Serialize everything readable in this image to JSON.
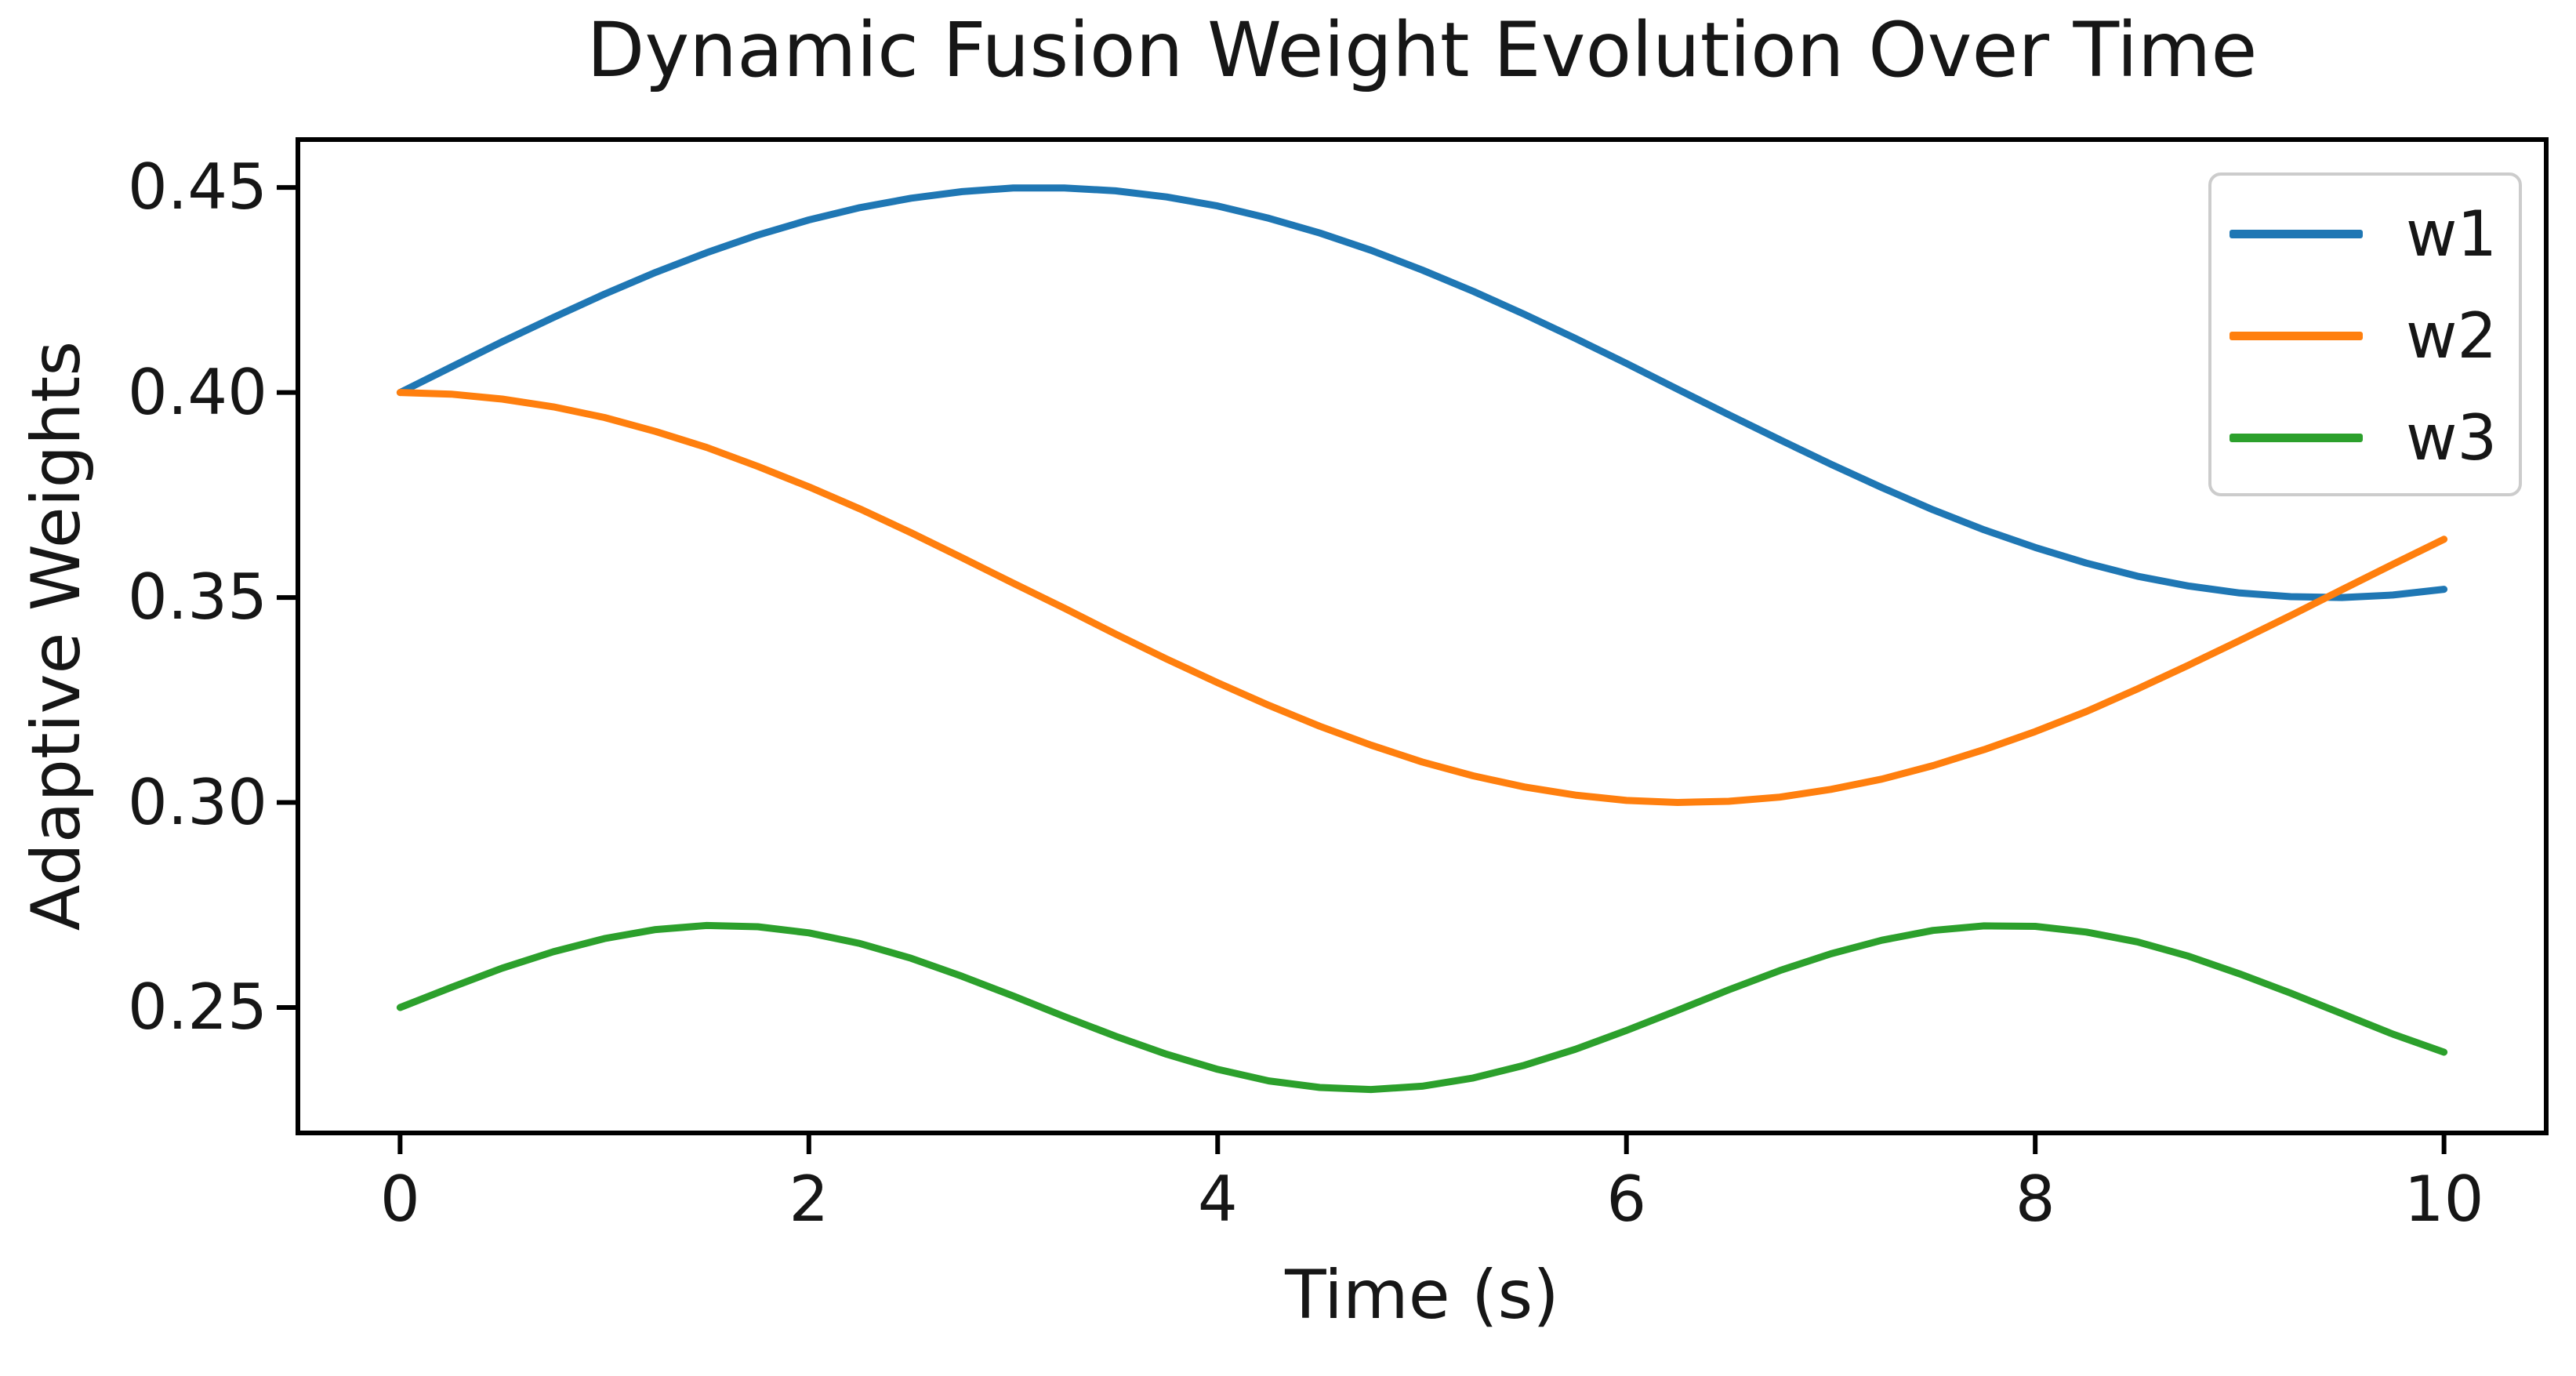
{
  "figure": {
    "background_color": "#ffffff",
    "text_color": "#161616",
    "spine_color": "#000000",
    "legend_border_color": "#cccccc"
  },
  "chart_data": {
    "type": "line",
    "title": "Dynamic Fusion Weight Evolution Over Time",
    "xlabel": "Time (s)",
    "ylabel": "Adaptive Weights",
    "grid": false,
    "legend_position": "upper right",
    "xlim": [
      -0.5,
      10.5
    ],
    "ylim": [
      0.2194,
      0.4617
    ],
    "xticks": {
      "values": [
        0,
        2,
        4,
        6,
        8,
        10
      ],
      "labels": [
        "0",
        "2",
        "4",
        "6",
        "8",
        "10"
      ]
    },
    "yticks": {
      "values": [
        0.25,
        0.3,
        0.35,
        0.4,
        0.45
      ],
      "labels": [
        "0.25",
        "0.30",
        "0.35",
        "0.40",
        "0.45"
      ]
    },
    "x": [
      0,
      0.25,
      0.5,
      0.75,
      1,
      1.25,
      1.5,
      1.75,
      2,
      2.25,
      2.5,
      2.75,
      3,
      3.25,
      3.5,
      3.75,
      4,
      4.25,
      4.5,
      4.75,
      5,
      5.25,
      5.5,
      5.75,
      6,
      6.25,
      6.5,
      6.75,
      7,
      7.25,
      7.5,
      7.75,
      8,
      8.25,
      8.5,
      8.75,
      9,
      9.25,
      9.5,
      9.75,
      10
    ],
    "series": [
      {
        "name": "w1",
        "color": "#1f77b4",
        "values": [
          0.4,
          0.4062,
          0.4124,
          0.4183,
          0.424,
          0.4293,
          0.4341,
          0.4384,
          0.4421,
          0.4451,
          0.4474,
          0.449,
          0.4499,
          0.4499,
          0.4492,
          0.4477,
          0.4455,
          0.4425,
          0.4389,
          0.4347,
          0.4299,
          0.4247,
          0.4191,
          0.4132,
          0.4071,
          0.4008,
          0.3946,
          0.3885,
          0.3825,
          0.3768,
          0.3714,
          0.3665,
          0.3622,
          0.3584,
          0.3552,
          0.3528,
          0.3511,
          0.3502,
          0.35,
          0.3506,
          0.352
        ]
      },
      {
        "name": "w2",
        "color": "#ff7f0e",
        "values": [
          0.4,
          0.3996,
          0.3984,
          0.3965,
          0.3939,
          0.3905,
          0.3866,
          0.382,
          0.377,
          0.3716,
          0.3658,
          0.3597,
          0.3535,
          0.3474,
          0.3411,
          0.335,
          0.3292,
          0.3237,
          0.3186,
          0.314,
          0.3099,
          0.3065,
          0.3038,
          0.3018,
          0.3005,
          0.3,
          0.3003,
          0.3013,
          0.3032,
          0.3057,
          0.309,
          0.3129,
          0.3173,
          0.3222,
          0.3277,
          0.3335,
          0.3395,
          0.3456,
          0.3519,
          0.3581,
          0.3642
        ]
      },
      {
        "name": "w3",
        "color": "#2ca02c",
        "values": [
          0.25,
          0.2549,
          0.2596,
          0.2636,
          0.2668,
          0.269,
          0.27,
          0.2697,
          0.2682,
          0.2656,
          0.262,
          0.2576,
          0.2528,
          0.2478,
          0.243,
          0.2386,
          0.2349,
          0.2321,
          0.2305,
          0.23,
          0.2308,
          0.2328,
          0.2359,
          0.2398,
          0.2444,
          0.2493,
          0.2543,
          0.259,
          0.2631,
          0.2664,
          0.2688,
          0.2699,
          0.2698,
          0.2684,
          0.266,
          0.2625,
          0.2582,
          0.2535,
          0.2485,
          0.2435,
          0.2391
        ]
      }
    ]
  }
}
